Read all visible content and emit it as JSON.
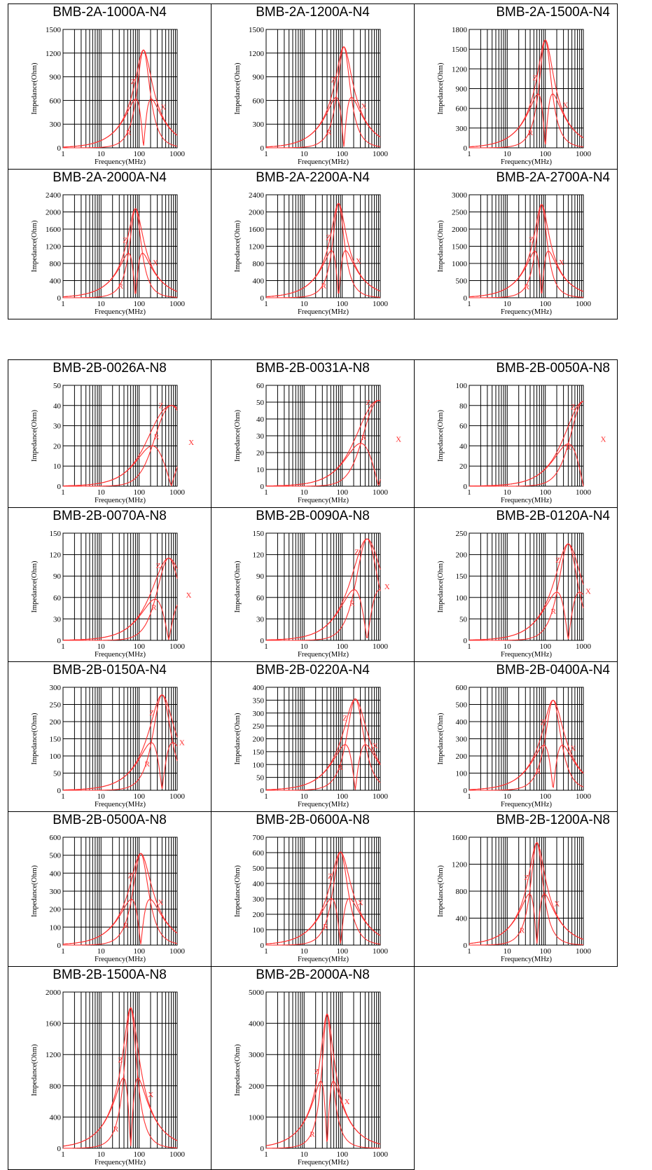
{
  "axis_text": {
    "xlabel": "Frequency(MHz)",
    "ylabel": "Impedance(Ohm)"
  },
  "x_ticks": [
    "1",
    "10",
    "100",
    "1000"
  ],
  "curve_labels": {
    "Z": "Z",
    "X": "X",
    "R": "R"
  },
  "colors": {
    "curve": "#ff3030",
    "grid": "#000000",
    "border": "#000000",
    "background": "#ffffff"
  },
  "chart_data": [
    {
      "title": "BMB-2A-1000A-N4",
      "type": "line",
      "xlabel": "Frequency(MHz)",
      "ylabel": "Impedance(Ohm)",
      "x_scale": "log",
      "xlim": [
        1,
        1000
      ],
      "ylim": [
        0,
        1500
      ],
      "yticks": [
        0,
        300,
        600,
        900,
        1200,
        1500
      ],
      "peak": {
        "freq": 130,
        "Z": 1240,
        "R": 1240,
        "X": 620
      }
    },
    {
      "title": "BMB-2A-1200A-N4",
      "type": "line",
      "xlabel": "Frequency(MHz)",
      "ylabel": "Impedance(Ohm)",
      "x_scale": "log",
      "xlim": [
        1,
        1000
      ],
      "ylim": [
        0,
        1500
      ],
      "yticks": [
        0,
        300,
        600,
        900,
        1200,
        1500
      ],
      "peak": {
        "freq": 110,
        "Z": 1280,
        "R": 1280,
        "X": 640
      }
    },
    {
      "title": "BMB-2A-1500A-N4",
      "type": "line",
      "xlabel": "Frequency(MHz)",
      "ylabel": "Impedance(Ohm)",
      "x_scale": "log",
      "xlim": [
        1,
        1000
      ],
      "ylim": [
        0,
        1800
      ],
      "yticks": [
        0,
        300,
        600,
        900,
        1200,
        1500,
        1800
      ],
      "peak": {
        "freq": 100,
        "Z": 1640,
        "R": 1640,
        "X": 820
      }
    },
    {
      "title": "BMB-2A-2000A-N4",
      "type": "line",
      "xlabel": "Frequency(MHz)",
      "ylabel": "Impedance(Ohm)",
      "x_scale": "log",
      "xlim": [
        1,
        1000
      ],
      "ylim": [
        0,
        2400
      ],
      "yticks": [
        0,
        400,
        800,
        1200,
        1600,
        2000,
        2400
      ],
      "peak": {
        "freq": 80,
        "Z": 2080,
        "R": 2080,
        "X": 1040
      }
    },
    {
      "title": "BMB-2A-2200A-N4",
      "type": "line",
      "xlabel": "Frequency(MHz)",
      "ylabel": "Impedance(Ohm)",
      "x_scale": "log",
      "xlim": [
        1,
        1000
      ],
      "ylim": [
        0,
        2400
      ],
      "yticks": [
        0,
        400,
        800,
        1200,
        1600,
        2000,
        2400
      ],
      "peak": {
        "freq": 80,
        "Z": 2200,
        "R": 2200,
        "X": 1100
      }
    },
    {
      "title": "BMB-2A-2700A-N4",
      "type": "line",
      "xlabel": "Frequency(MHz)",
      "ylabel": "Impedance(Ohm)",
      "x_scale": "log",
      "xlim": [
        1,
        1000
      ],
      "ylim": [
        0,
        3000
      ],
      "yticks": [
        0,
        500,
        1000,
        1500,
        2000,
        2500,
        3000
      ],
      "peak": {
        "freq": 80,
        "Z": 2720,
        "R": 2720,
        "X": 1360
      }
    },
    {
      "title": "BMB-2B-0026A-N8",
      "type": "line",
      "xlabel": "Frequency(MHz)",
      "ylabel": "Impedance(Ohm)",
      "x_scale": "log",
      "xlim": [
        1,
        1000
      ],
      "ylim": [
        0,
        50
      ],
      "yticks": [
        0,
        10,
        20,
        30,
        40,
        50
      ],
      "peak": {
        "freq": 700,
        "Z": 40,
        "R": 40,
        "X": 15
      }
    },
    {
      "title": "BMB-2B-0031A-N8",
      "type": "line",
      "xlabel": "Frequency(MHz)",
      "ylabel": "Impedance(Ohm)",
      "x_scale": "log",
      "xlim": [
        1,
        1000
      ],
      "ylim": [
        0,
        60
      ],
      "yticks": [
        0,
        10,
        20,
        30,
        40,
        50,
        60
      ],
      "peak": {
        "freq": 900,
        "Z": 51,
        "R": 51,
        "X": 20
      }
    },
    {
      "title": "BMB-2B-0050A-N8",
      "type": "line",
      "xlabel": "Frequency(MHz)",
      "ylabel": "Impedance(Ohm)",
      "x_scale": "log",
      "xlim": [
        1,
        1000
      ],
      "ylim": [
        0,
        100
      ],
      "yticks": [
        0,
        20,
        40,
        60,
        80,
        100
      ],
      "peak": {
        "freq": 1000,
        "Z": 84,
        "R": 84,
        "X": 33
      }
    },
    {
      "title": "BMB-2B-0070A-N8",
      "type": "line",
      "xlabel": "Frequency(MHz)",
      "ylabel": "Impedance(Ohm)",
      "x_scale": "log",
      "xlim": [
        1,
        1000
      ],
      "ylim": [
        0,
        150
      ],
      "yticks": [
        0,
        30,
        60,
        90,
        120,
        150
      ],
      "peak": {
        "freq": 600,
        "Z": 115,
        "R": 115,
        "X": 45
      }
    },
    {
      "title": "BMB-2B-0090A-N8",
      "type": "line",
      "xlabel": "Frequency(MHz)",
      "ylabel": "Impedance(Ohm)",
      "x_scale": "log",
      "xlim": [
        1,
        1000
      ],
      "ylim": [
        0,
        150
      ],
      "yticks": [
        0,
        30,
        60,
        90,
        120,
        150
      ],
      "peak": {
        "freq": 450,
        "Z": 142,
        "R": 142,
        "X": 56
      }
    },
    {
      "title": "BMB-2B-0120A-N4",
      "type": "line",
      "xlabel": "Frequency(MHz)",
      "ylabel": "Impedance(Ohm)",
      "x_scale": "log",
      "xlim": [
        1,
        1000
      ],
      "ylim": [
        0,
        250
      ],
      "yticks": [
        0,
        50,
        100,
        150,
        200,
        250
      ],
      "peak": {
        "freq": 400,
        "Z": 225,
        "R": 225,
        "X": 110
      }
    },
    {
      "title": "BMB-2B-0150A-N4",
      "type": "line",
      "xlabel": "Frequency(MHz)",
      "ylabel": "Impedance(Ohm)",
      "x_scale": "log",
      "xlim": [
        1,
        1000
      ],
      "ylim": [
        0,
        300
      ],
      "yticks": [
        0,
        50,
        100,
        150,
        200,
        250,
        300
      ],
      "peak": {
        "freq": 400,
        "Z": 278,
        "R": 278,
        "X": 140
      }
    },
    {
      "title": "BMB-2B-0220A-N4",
      "type": "line",
      "xlabel": "Frequency(MHz)",
      "ylabel": "Impedance(Ohm)",
      "x_scale": "log",
      "xlim": [
        1,
        1000
      ],
      "ylim": [
        0,
        400
      ],
      "yticks": [
        0,
        50,
        100,
        150,
        200,
        250,
        300,
        350,
        400
      ],
      "peak": {
        "freq": 220,
        "Z": 355,
        "R": 355,
        "X": 190
      }
    },
    {
      "title": "BMB-2B-0400A-N4",
      "type": "line",
      "xlabel": "Frequency(MHz)",
      "ylabel": "Impedance(Ohm)",
      "x_scale": "log",
      "xlim": [
        1,
        1000
      ],
      "ylim": [
        0,
        600
      ],
      "yticks": [
        0,
        100,
        200,
        300,
        400,
        500,
        600
      ],
      "peak": {
        "freq": 160,
        "Z": 525,
        "R": 525,
        "X": 270
      }
    },
    {
      "title": "BMB-2B-0500A-N8",
      "type": "line",
      "xlabel": "Frequency(MHz)",
      "ylabel": "Impedance(Ohm)",
      "x_scale": "log",
      "xlim": [
        1,
        1000
      ],
      "ylim": [
        0,
        600
      ],
      "yticks": [
        0,
        100,
        200,
        300,
        400,
        500,
        600
      ],
      "peak": {
        "freq": 110,
        "Z": 510,
        "R": 510,
        "X": 245
      }
    },
    {
      "title": "BMB-2B-0600A-N8",
      "type": "line",
      "xlabel": "Frequency(MHz)",
      "ylabel": "Impedance(Ohm)",
      "x_scale": "log",
      "xlim": [
        1,
        1000
      ],
      "ylim": [
        0,
        700
      ],
      "yticks": [
        0,
        100,
        200,
        300,
        400,
        500,
        600,
        700
      ],
      "peak": {
        "freq": 90,
        "Z": 605,
        "R": 605,
        "X": 300
      }
    },
    {
      "title": "BMB-2B-1200A-N8",
      "type": "line",
      "xlabel": "Frequency(MHz)",
      "ylabel": "Impedance(Ohm)",
      "x_scale": "log",
      "xlim": [
        1,
        1000
      ],
      "ylim": [
        0,
        1600
      ],
      "yticks": [
        0,
        400,
        800,
        1200,
        1600
      ],
      "peak": {
        "freq": 60,
        "Z": 1520,
        "R": 1520,
        "X": 760
      }
    },
    {
      "title": "BMB-2B-1500A-N8",
      "type": "line",
      "xlabel": "Frequency(MHz)",
      "ylabel": "Impedance(Ohm)",
      "x_scale": "log",
      "xlim": [
        1,
        1000
      ],
      "ylim": [
        0,
        2000
      ],
      "yticks": [
        0,
        400,
        800,
        1200,
        1600,
        2000
      ],
      "peak": {
        "freq": 60,
        "Z": 1800,
        "R": 1800,
        "X": 900
      }
    },
    {
      "title": "BMB-2B-2000A-N8",
      "type": "line",
      "xlabel": "Frequency(MHz)",
      "ylabel": "Impedance(Ohm)",
      "x_scale": "log",
      "xlim": [
        1,
        1000
      ],
      "ylim": [
        0,
        5000
      ],
      "yticks": [
        0,
        1000,
        2000,
        3000,
        4000,
        5000
      ],
      "peak": {
        "freq": 40,
        "Z": 4300,
        "R": 4300,
        "X": 2150
      }
    }
  ]
}
